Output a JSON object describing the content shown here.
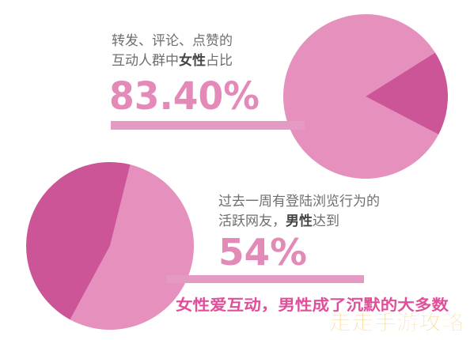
{
  "chart_data": [
    {
      "type": "pie",
      "title": "转发、评论、点赞的互动人群中女性占比",
      "title_parts": {
        "line1": "转发、评论、点赞的",
        "line2_prefix": "互动人群中",
        "line2_bold": "女性",
        "line2_suffix": "占比"
      },
      "value_label": "83.40%",
      "slices": [
        {
          "name": "女性",
          "value": 83.4,
          "color": "#e590bd"
        },
        {
          "name": "男性",
          "value": 16.6,
          "color": "#cc5597"
        }
      ]
    },
    {
      "type": "pie",
      "title": "过去一周有登陆浏览行为的活跃网友，男性达到",
      "title_parts": {
        "line1": "过去一周有登陆浏览行为的",
        "line2_prefix": "活跃网友，",
        "line2_bold": "男性",
        "line2_suffix": "达到"
      },
      "value_label": "54%",
      "slices": [
        {
          "name": "男性",
          "value": 54,
          "color": "#e590bd"
        },
        {
          "name": "女性",
          "value": 46,
          "color": "#cc5597"
        }
      ]
    }
  ],
  "caption": "女性爱互动，男性成了沉默的大多数",
  "watermark": "走走手游攻略",
  "colors": {
    "light_pink": "#e590bd",
    "dark_pink": "#cc5597",
    "bar_pink": "#e59ac3",
    "text_gray": "#6e6e6e",
    "value_pink": "#e38ab8",
    "caption_pink": "#e0509a",
    "watermark_orange": "#f2b74a"
  }
}
